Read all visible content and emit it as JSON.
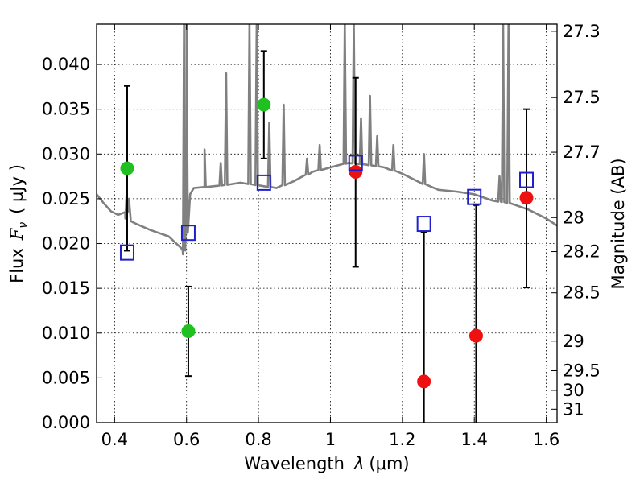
{
  "chart_data": {
    "type": "scatter",
    "xlabel_prefix": "Wavelength",
    "xlabel_symbol": "λ",
    "xlabel_unit": "(μm)",
    "ylabel_prefix": "Flux",
    "ylabel_symbol": "F",
    "ylabel_sub": "ν",
    "ylabel_unit": "( μJy )",
    "y2label": "Magnitude (AB)",
    "xlim": [
      0.35,
      1.63
    ],
    "ylim": [
      0.0,
      0.0445
    ],
    "grid": true,
    "x_ticks": [
      0.4,
      0.6,
      0.8,
      1.0,
      1.2,
      1.4,
      1.6
    ],
    "x_tick_labels": [
      "0.4",
      "0.6",
      "0.8",
      "1",
      "1.2",
      "1.4",
      "1.6"
    ],
    "y_ticks": [
      0.0,
      0.005,
      0.01,
      0.015,
      0.02,
      0.025,
      0.03,
      0.035,
      0.04
    ],
    "y_tick_labels": [
      "0.000",
      "0.005",
      "0.010",
      "0.015",
      "0.020",
      "0.025",
      "0.030",
      "0.035",
      "0.040"
    ],
    "mag_ticks": [
      {
        "label": "27.3",
        "flux": 0.0437
      },
      {
        "label": "27.5",
        "flux": 0.0363
      },
      {
        "label": "27.7",
        "flux": 0.0302
      },
      {
        "label": "28",
        "flux": 0.0229
      },
      {
        "label": "28.2",
        "flux": 0.0191
      },
      {
        "label": "28.5",
        "flux": 0.0145
      },
      {
        "label": "29",
        "flux": 0.0091
      },
      {
        "label": "29.5",
        "flux": 0.0058
      },
      {
        "label": "30",
        "flux": 0.0036
      },
      {
        "label": "31",
        "flux": 0.0015
      }
    ],
    "series": [
      {
        "name": "model SED spectrum",
        "kind": "line",
        "color": "#808080",
        "x": [
          0.35,
          0.37,
          0.39,
          0.41,
          0.43,
          0.435,
          0.44,
          0.445,
          0.46,
          0.5,
          0.55,
          0.585,
          0.59,
          0.595,
          0.6,
          0.61,
          0.62,
          0.65,
          0.7,
          0.75,
          0.8,
          0.85,
          0.9,
          0.95,
          1.0,
          1.05,
          1.1,
          1.15,
          1.2,
          1.25,
          1.3,
          1.35,
          1.4,
          1.45,
          1.5,
          1.55,
          1.6,
          1.63
        ],
        "y": [
          0.0255,
          0.0245,
          0.0236,
          0.0232,
          0.0228,
          0.024,
          0.025,
          0.0225,
          0.0222,
          0.0215,
          0.0208,
          0.0195,
          0.0188,
          0.0195,
          0.0212,
          0.0255,
          0.0262,
          0.0263,
          0.0265,
          0.0268,
          0.0265,
          0.0262,
          0.027,
          0.028,
          0.0285,
          0.029,
          0.0288,
          0.0285,
          0.0278,
          0.0268,
          0.026,
          0.0258,
          0.0255,
          0.0248,
          0.0245,
          0.0238,
          0.0228,
          0.022
        ],
        "emission_lines": [
          {
            "x": 0.433,
            "peak": 0.0252
          },
          {
            "x": 0.593,
            "peak": 0.0445
          },
          {
            "x": 0.6,
            "peak": 0.0445
          },
          {
            "x": 0.65,
            "peak": 0.0305
          },
          {
            "x": 0.695,
            "peak": 0.029
          },
          {
            "x": 0.71,
            "peak": 0.039
          },
          {
            "x": 0.775,
            "peak": 0.0445
          },
          {
            "x": 0.795,
            "peak": 0.0445
          },
          {
            "x": 0.83,
            "peak": 0.0335
          },
          {
            "x": 0.87,
            "peak": 0.0355
          },
          {
            "x": 0.935,
            "peak": 0.0295
          },
          {
            "x": 0.97,
            "peak": 0.031
          },
          {
            "x": 1.04,
            "peak": 0.0445
          },
          {
            "x": 1.065,
            "peak": 0.0445
          },
          {
            "x": 1.085,
            "peak": 0.034
          },
          {
            "x": 1.11,
            "peak": 0.0365
          },
          {
            "x": 1.13,
            "peak": 0.032
          },
          {
            "x": 1.175,
            "peak": 0.031
          },
          {
            "x": 1.26,
            "peak": 0.03
          },
          {
            "x": 1.47,
            "peak": 0.0275
          },
          {
            "x": 1.48,
            "peak": 0.0445
          },
          {
            "x": 1.495,
            "peak": 0.0445
          }
        ]
      },
      {
        "name": "green detections",
        "kind": "points",
        "color": "#1fc01f",
        "points": [
          {
            "x": 0.435,
            "y": 0.0284,
            "ylo": 0.0192,
            "yhi": 0.0376
          },
          {
            "x": 0.605,
            "y": 0.0102,
            "ylo": 0.0052,
            "yhi": 0.0152
          },
          {
            "x": 0.815,
            "y": 0.0355,
            "ylo": 0.0295,
            "yhi": 0.0415
          }
        ]
      },
      {
        "name": "red detections",
        "kind": "points",
        "color": "#ee1111",
        "points": [
          {
            "x": 1.07,
            "y": 0.028,
            "ylo": 0.0174,
            "yhi": 0.0385
          },
          {
            "x": 1.26,
            "y": 0.0046,
            "ylo": 0.0,
            "yhi": 0.0213
          },
          {
            "x": 1.405,
            "y": 0.0097,
            "ylo": 0.0,
            "yhi": 0.0243
          },
          {
            "x": 1.545,
            "y": 0.0251,
            "ylo": 0.0151,
            "yhi": 0.035
          }
        ]
      },
      {
        "name": "model photometry",
        "kind": "squares",
        "color": "#1f1fcc",
        "points": [
          {
            "x": 0.435,
            "y": 0.019
          },
          {
            "x": 0.605,
            "y": 0.0212
          },
          {
            "x": 0.815,
            "y": 0.0268
          },
          {
            "x": 1.07,
            "y": 0.029
          },
          {
            "x": 1.26,
            "y": 0.0222
          },
          {
            "x": 1.4,
            "y": 0.0252
          },
          {
            "x": 1.545,
            "y": 0.0271
          }
        ]
      }
    ]
  }
}
